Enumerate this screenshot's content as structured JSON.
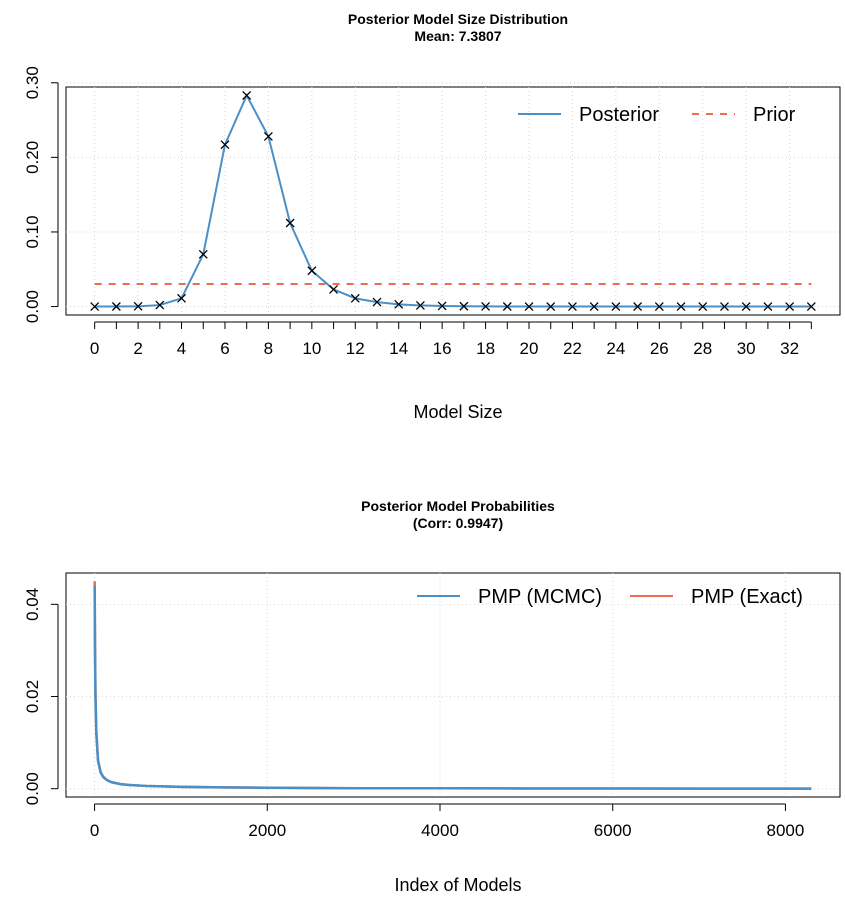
{
  "chart_data": [
    {
      "type": "line",
      "title": "Posterior Model Size Distribution",
      "subtitle": "Mean: 7.3807",
      "xlabel": "Model Size",
      "ylabel": "",
      "x": [
        0,
        1,
        2,
        3,
        4,
        5,
        6,
        7,
        8,
        9,
        10,
        11,
        12,
        13,
        14,
        15,
        16,
        17,
        18,
        19,
        20,
        21,
        22,
        23,
        24,
        25,
        26,
        27,
        28,
        29,
        30,
        31,
        32,
        33
      ],
      "xlim": [
        0,
        33
      ],
      "ylim": [
        0,
        0.3
      ],
      "x_ticks": [
        0,
        2,
        4,
        6,
        8,
        10,
        12,
        14,
        16,
        18,
        20,
        22,
        24,
        26,
        28,
        30,
        32
      ],
      "y_ticks": [
        0.0,
        0.1,
        0.2,
        0.3
      ],
      "y_tick_labels": [
        "0.00",
        "0.10",
        "0.20",
        "0.30"
      ],
      "grid": true,
      "legend_position": "top-right",
      "series": [
        {
          "name": "Posterior",
          "color": "#4A90C8",
          "style": "solid",
          "markers": "x",
          "values": [
            0.0,
            0.0001,
            0.0003,
            0.002,
            0.011,
            0.07,
            0.217,
            0.283,
            0.228,
            0.112,
            0.048,
            0.023,
            0.011,
            0.006,
            0.003,
            0.0015,
            0.0008,
            0.0004,
            0.0002,
            0.0001,
            0,
            0,
            0,
            0,
            0,
            0,
            0,
            0,
            0,
            0,
            0,
            0,
            0,
            0
          ]
        },
        {
          "name": "Prior",
          "color": "#EE6A50",
          "style": "dashed",
          "values": [
            0.0303,
            0.0303,
            0.0303,
            0.0303,
            0.0303,
            0.0303,
            0.0303,
            0.0303,
            0.0303,
            0.0303,
            0.0303,
            0.0303,
            0.0303,
            0.0303,
            0.0303,
            0.0303,
            0.0303,
            0.0303,
            0.0303,
            0.0303,
            0.0303,
            0.0303,
            0.0303,
            0.0303,
            0.0303,
            0.0303,
            0.0303,
            0.0303,
            0.0303,
            0.0303,
            0.0303,
            0.0303,
            0.0303,
            0.0303
          ]
        }
      ]
    },
    {
      "type": "line",
      "title": "Posterior Model Probabilities",
      "subtitle": "(Corr: 0.9947)",
      "xlabel": "Index of Models",
      "ylabel": "",
      "xlim": [
        0,
        8300
      ],
      "ylim": [
        0,
        0.045
      ],
      "x_ticks": [
        0,
        2000,
        4000,
        6000,
        8000
      ],
      "y_ticks": [
        0.0,
        0.02,
        0.04
      ],
      "y_tick_labels": [
        "0.00",
        "0.02",
        "0.04"
      ],
      "grid": true,
      "legend_position": "top-right",
      "x": [
        1,
        5,
        10,
        20,
        40,
        70,
        100,
        150,
        200,
        300,
        400,
        600,
        800,
        1000,
        1500,
        2000,
        3000,
        4000,
        5000,
        6000,
        7000,
        8000,
        8300
      ],
      "series": [
        {
          "name": "PMP (MCMC)",
          "color": "#4A90C8",
          "style": "solid",
          "values": [
            0.044,
            0.03,
            0.02,
            0.012,
            0.006,
            0.0035,
            0.0025,
            0.0018,
            0.0014,
            0.001,
            0.0008,
            0.0006,
            0.0005,
            0.0004,
            0.0003,
            0.0002,
            0.0001,
            0.0001,
            5e-05,
            4e-05,
            3e-05,
            2e-05,
            2e-05
          ]
        },
        {
          "name": "PMP (Exact)",
          "color": "#EE6A50",
          "style": "solid",
          "values": [
            0.045,
            0.031,
            0.021,
            0.0125,
            0.0062,
            0.0036,
            0.0026,
            0.0018,
            0.0014,
            0.001,
            0.0008,
            0.0006,
            0.0005,
            0.0004,
            0.0003,
            0.0002,
            0.0001,
            0.0001,
            5e-05,
            4e-05,
            3e-05,
            2e-05,
            2e-05
          ]
        }
      ]
    }
  ]
}
